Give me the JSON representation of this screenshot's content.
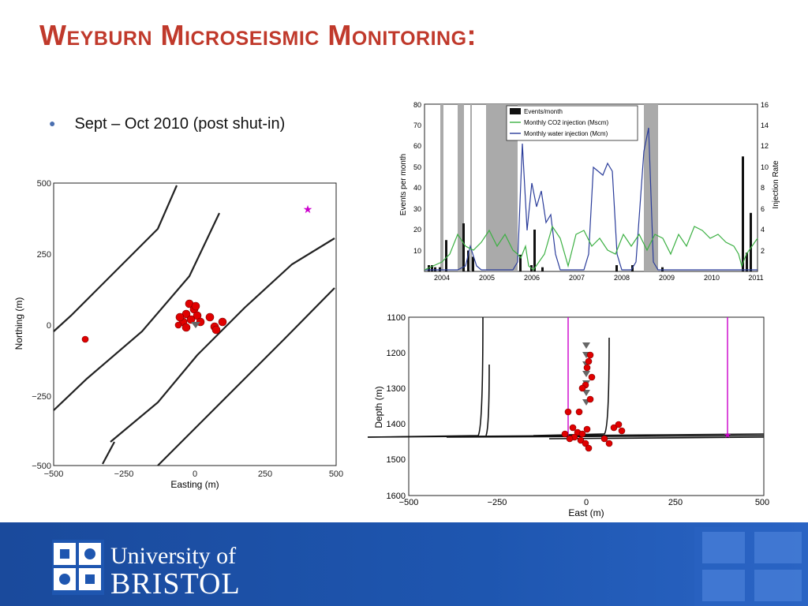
{
  "slide": {
    "title": "Weyburn Microseismic Monitoring:",
    "bullet": "Sept – Oct 2010 (post shut-in)"
  },
  "map_plot": {
    "xlabel": "Easting (m)",
    "ylabel": "Northing (m)",
    "x_ticks": [
      "−500",
      "−250",
      "0",
      "250",
      "500"
    ],
    "y_ticks": [
      "500",
      "250",
      "0",
      "−250",
      "−500"
    ]
  },
  "depth_plot": {
    "xlabel": "East (m)",
    "ylabel": "Depth (m)",
    "x_ticks": [
      "−500",
      "−250",
      "0",
      "250",
      "500"
    ],
    "y_ticks": [
      "1100",
      "1200",
      "1300",
      "1400",
      "1500",
      "1600"
    ]
  },
  "chart_data": {
    "type": "bar",
    "ylabel": "Events per month",
    "y2label": "Injection Rate",
    "ylim": [
      0,
      80
    ],
    "y2lim": [
      0,
      16
    ],
    "y_ticks": [
      "80",
      "70",
      "60",
      "50",
      "40",
      "30",
      "20",
      "10"
    ],
    "y2_ticks": [
      "16",
      "14",
      "12",
      "10",
      "8",
      "6",
      "4",
      "2"
    ],
    "x_ticks": [
      "2004",
      "2005",
      "2006",
      "2007",
      "2008",
      "2009",
      "2010",
      "2011"
    ],
    "legend": [
      "Events/month",
      "Monthly CO2  injection (Mscm)",
      "Monthly water injection (Mcm)"
    ],
    "legend_position": "top-center"
  },
  "footer": {
    "line1": "University of",
    "line2": "BRISTOL"
  },
  "colors": {
    "title": "#c0392b",
    "footer": "#1e56b0",
    "event_dot": "#e00000",
    "well": "#cc00cc"
  }
}
